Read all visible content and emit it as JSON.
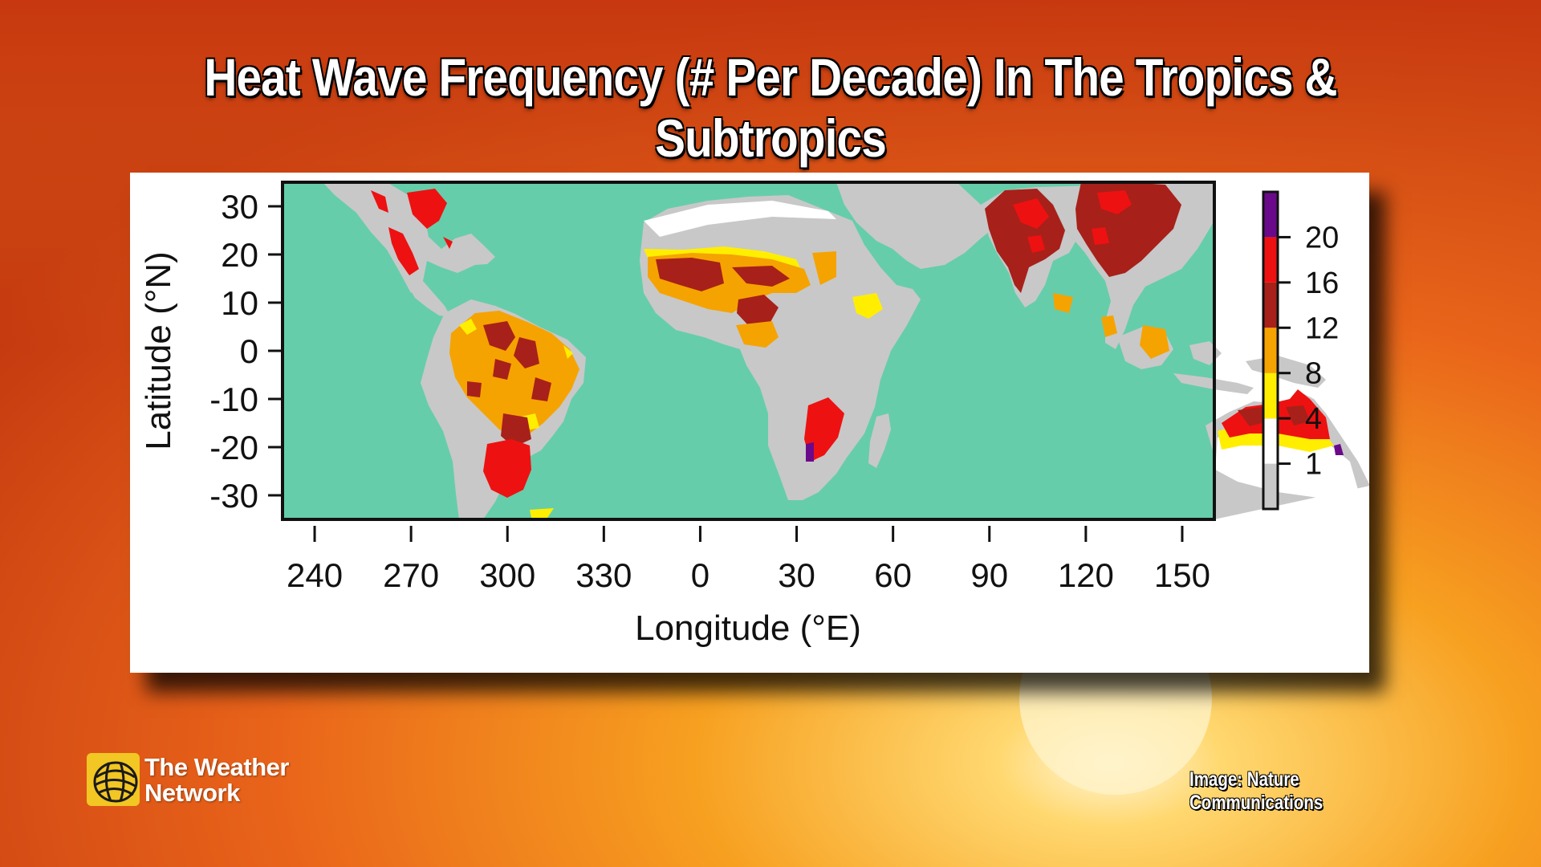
{
  "headline": "Heat Wave Frequency (# Per Decade) In The Tropics & Subtropics",
  "chart_data": {
    "type": "heatmap",
    "title": "",
    "xlabel": "Longitude (°E)",
    "ylabel": "Latitude (°N)",
    "x_ticks": [
      "240",
      "270",
      "300",
      "330",
      "0",
      "30",
      "60",
      "90",
      "120",
      "150"
    ],
    "x_range_deg_east": [
      230,
      160
    ],
    "y_ticks": [
      "30",
      "20",
      "10",
      "0",
      "-10",
      "-20",
      "-30"
    ],
    "ylim": [
      -35,
      35
    ],
    "colorbar": {
      "tick_labels": [
        "20",
        "16",
        "12",
        "8",
        "4",
        "1"
      ],
      "bins": [
        {
          "range": "<1",
          "color": "#c8c8c8"
        },
        {
          "range": "1-4",
          "color": "#ffffff"
        },
        {
          "range": "4-8",
          "color": "#ffee00"
        },
        {
          "range": "8-12",
          "color": "#f5a300"
        },
        {
          "range": "12-16",
          "color": "#a8201a"
        },
        {
          "range": "16-20",
          "color": "#ee1111"
        },
        {
          "range": ">20",
          "color": "#6a0a8a"
        }
      ]
    },
    "ocean_color": "#66cdaa",
    "land_base_color": "#c8c8c8"
  },
  "branding": {
    "line1": "The Weather",
    "line2": "Network"
  },
  "credit": "Image: Nature Communications"
}
